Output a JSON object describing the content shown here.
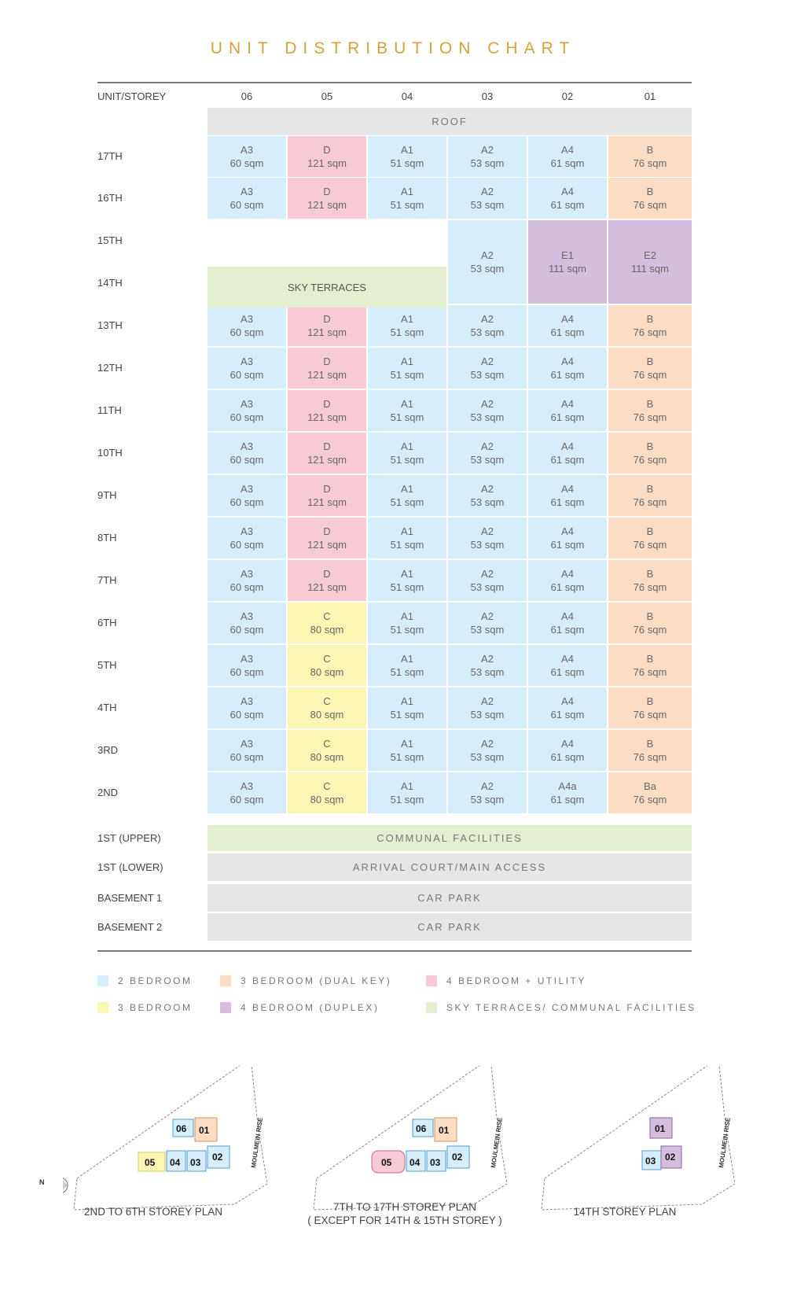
{
  "title": "UNIT DISTRIBUTION CHART",
  "header": {
    "label": "UNIT/STOREY",
    "columns": [
      "06",
      "05",
      "04",
      "03",
      "02",
      "01"
    ]
  },
  "roof": "ROOF",
  "floors": [
    "17TH",
    "16TH",
    "15TH",
    "14TH",
    "13TH",
    "12TH",
    "11TH",
    "10TH",
    "9TH",
    "8TH",
    "7TH",
    "6TH",
    "5TH",
    "4TH",
    "3RD",
    "2ND",
    "1ST (UPPER)",
    "1ST (LOWER)",
    "BASEMENT 1",
    "BASEMENT 2"
  ],
  "cells": {
    "A1": {
      "type": "A1",
      "area": "51 sqm"
    },
    "A2": {
      "type": "A2",
      "area": "53 sqm"
    },
    "A3": {
      "type": "A3",
      "area": "60 sqm"
    },
    "A4": {
      "type": "A4",
      "area": "61 sqm"
    },
    "A4a": {
      "type": "A4a",
      "area": "61 sqm"
    },
    "B": {
      "type": "B",
      "area": "76 sqm"
    },
    "Ba": {
      "type": "Ba",
      "area": "76 sqm"
    },
    "C": {
      "type": "C",
      "area": "80 sqm"
    },
    "D": {
      "type": "D",
      "area": "121 sqm"
    },
    "E1": {
      "type": "E1",
      "area": "111 sqm"
    },
    "E2": {
      "type": "E2",
      "area": "111 sqm"
    }
  },
  "sky_terraces": "SKY TERRACES",
  "communal": "COMMUNAL FACILITIES",
  "arrival": "ARRIVAL COURT/MAIN ACCESS",
  "car_park_1": "CAR PARK",
  "car_park_2": "CAR PARK",
  "legend": [
    {
      "label": "2 BEDROOM",
      "color": "#d6eefb"
    },
    {
      "label": "3 BEDROOM (DUAL KEY)",
      "color": "#fddcc4"
    },
    {
      "label": "4 BEDROOM + UTILITY",
      "color": "#f8cad5"
    },
    {
      "label": "3 BEDROOM",
      "color": "#fcf6b4"
    },
    {
      "label": "4 BEDROOM (DUPLEX)",
      "color": "#d3bfdd"
    },
    {
      "label": "SKY TERRACES/ COMMUNAL FACILITIES",
      "color": "#e4efcf"
    }
  ],
  "plans": {
    "road": "MOULMEIN RISE",
    "north": "N",
    "plan1": {
      "label": "2ND TO 6TH STOREY PLAN",
      "units": [
        "06",
        "01",
        "05",
        "04",
        "03",
        "02"
      ]
    },
    "plan2": {
      "label": "7TH TO 17TH STOREY PLAN",
      "sublabel": "( EXCEPT FOR 14TH & 15TH STOREY )",
      "units": [
        "06",
        "01",
        "05",
        "04",
        "03",
        "02"
      ]
    },
    "plan3": {
      "label": "14TH STOREY PLAN",
      "units": [
        "01",
        "03",
        "02"
      ]
    }
  }
}
